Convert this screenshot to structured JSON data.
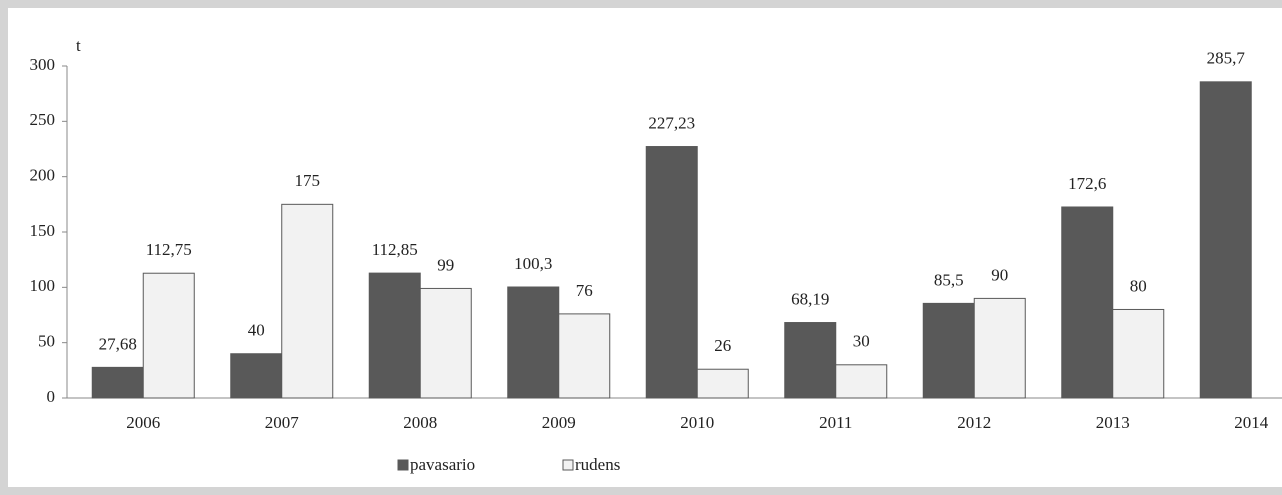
{
  "chart_data": {
    "type": "bar",
    "y_label": "t",
    "categories": [
      "2006",
      "2007",
      "2008",
      "2009",
      "2010",
      "2011",
      "2012",
      "2013",
      "2014"
    ],
    "series": [
      {
        "name": "pavasario",
        "color": "#595959",
        "values": [
          27.68,
          40,
          112.85,
          100.3,
          227.23,
          68.19,
          85.5,
          172.6,
          285.7
        ],
        "value_labels": [
          "27,68",
          "40",
          "112,85",
          "100,3",
          "227,23",
          "68,19",
          "85,5",
          "172,6",
          "285,7"
        ]
      },
      {
        "name": "rudens",
        "color": "#f2f2f2",
        "values": [
          112.75,
          175,
          99,
          76,
          26,
          30,
          90,
          80,
          null
        ],
        "value_labels": [
          "112,75",
          "175",
          "99",
          "76",
          "26",
          "30",
          "90",
          "80",
          null
        ]
      }
    ],
    "ylim": [
      0,
      300
    ],
    "yticks": [
      0,
      50,
      100,
      150,
      200,
      250,
      300
    ],
    "grid": false,
    "legend": "bottom"
  }
}
